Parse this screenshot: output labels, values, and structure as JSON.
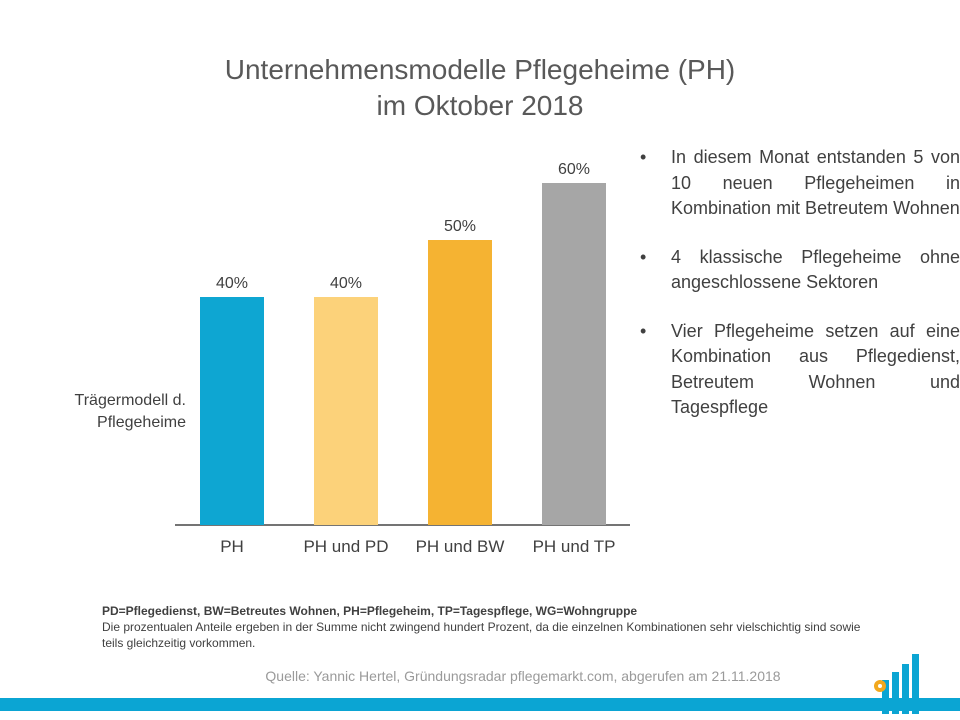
{
  "title_line1": "Unternehmensmodelle Pflegeheime (PH)",
  "title_line2": "im Oktober 2018",
  "chart_data": {
    "type": "bar",
    "title": "Unternehmensmodelle Pflegeheime (PH) im Oktober 2018",
    "ylabel": "Trägermodell d. Pflegeheime",
    "xlabel": "",
    "categories": [
      "PH",
      "PH und PD",
      "PH und BW",
      "PH und TP"
    ],
    "values": [
      40,
      40,
      50,
      60
    ],
    "value_labels": [
      "40%",
      "40%",
      "50%",
      "60%"
    ],
    "colors": [
      "#0ea6d2",
      "#fcd27a",
      "#f5b332",
      "#a6a6a6"
    ],
    "ylim": [
      0,
      70
    ],
    "grid": false,
    "legend": "none"
  },
  "ylabel_line1": "Trägermodell d.",
  "ylabel_line2": "Pflegeheime",
  "bullets": [
    "In diesem Monat entstanden 5 von 10 neuen Pflegeheimen in Kombination mit Betreutem Wohnen",
    "4 klassische Pflegeheime ohne angeschlossene Sektoren",
    "Vier Pflegeheime setzen auf eine Kombination aus Pflegedienst, Betreutem Wohnen und Tagespflege"
  ],
  "bullet_symbol": "•",
  "footnote_abbr": "PD=Pflegedienst, BW=Betreutes Wohnen, PH=Pflegeheim, TP=Tagespflege, WG=Wohngruppe",
  "footnote_text": "Die prozentualen Anteile ergeben in der Summe nicht zwingend hundert Prozent, da die einzelnen Kombinationen sehr vielschichtig sind sowie teils gleichzeitig vorkommen.",
  "source": "Quelle: Yannic Hertel, Gründungsradar pflegemarkt.com, abgerufen am 21.11.2018",
  "colors": {
    "accent_blue": "#0ba5d3",
    "logo_orange": "#f2a81d"
  }
}
